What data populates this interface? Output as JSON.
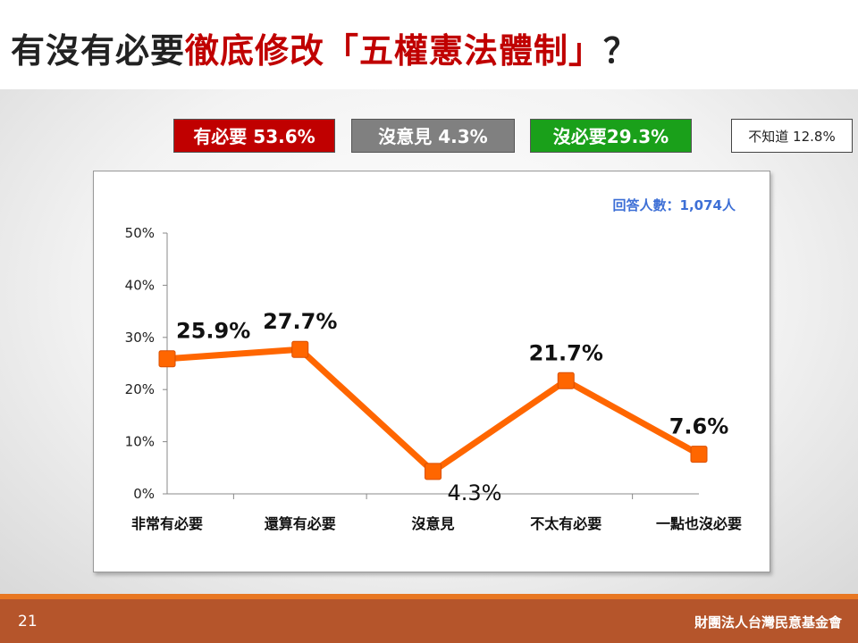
{
  "slide": {
    "title_prefix": "有沒有必要",
    "title_highlight": "徹底修改「五權憲法體制」",
    "title_suffix": "？",
    "page_number": "21",
    "organization": "財團法人台灣民意基金會"
  },
  "summary": {
    "necessary": "有必要 53.6%",
    "neutral": "沒意見 4.3%",
    "unnecessary": "沒必要29.3%",
    "dont_know": "不知道 12.8%"
  },
  "colors": {
    "line": "#ff6600",
    "necessary": "#c00000",
    "neutral": "#808080",
    "unnecessary": "#1aa01a",
    "note": "#3d6fd6",
    "footer": "#b5552b"
  },
  "chart_data": {
    "type": "line",
    "note": "回答人數：1,074人",
    "categories": [
      "非常有必要",
      "還算有必要",
      "沒意見",
      "不太有必要",
      "一點也沒必要"
    ],
    "values": [
      25.9,
      27.7,
      4.3,
      21.7,
      7.6
    ],
    "value_labels": [
      "25.9%",
      "27.7%",
      "4.3%",
      "21.7%",
      "7.6%"
    ],
    "ylim": [
      0,
      50
    ],
    "yticks": [
      0,
      10,
      20,
      30,
      40,
      50
    ],
    "ytick_labels": [
      "0%",
      "10%",
      "20%",
      "30%",
      "40%",
      "50%"
    ],
    "grid": false,
    "legend": "none"
  }
}
